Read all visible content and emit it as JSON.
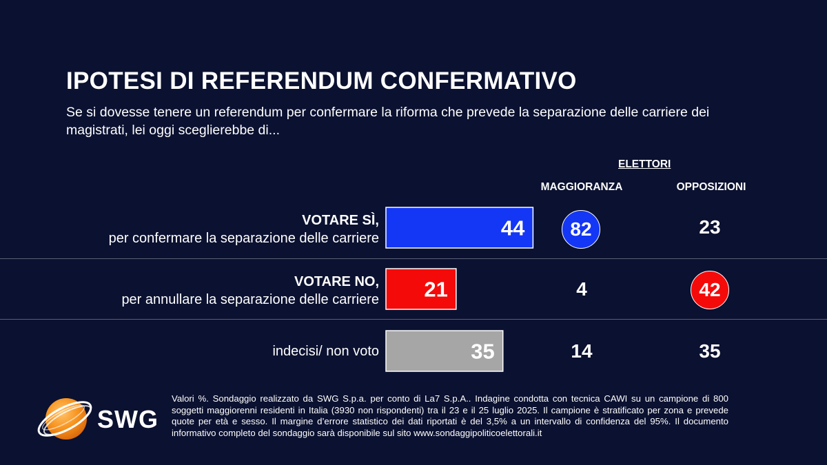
{
  "title": "IPOTESI DI REFERENDUM CONFERMATIVO",
  "subtitle": "Se si dovesse tenere un referendum per confermare la riforma che prevede la separazione delle carriere dei magistrati, lei oggi sceglierebbe di...",
  "group_label": "ELETTORI",
  "columns": {
    "maggioranza": "MAGGIORANZA",
    "opposizioni": "OPPOSIZIONI"
  },
  "rows": [
    {
      "label_strong": "VOTARE SÌ,",
      "label_rest": "per confermare la separazione delle carriere",
      "total": "44",
      "maggioranza": "82",
      "opposizioni": "23"
    },
    {
      "label_strong": "VOTARE NO,",
      "label_rest": "per annullare la separazione delle carriere",
      "total": "21",
      "maggioranza": "4",
      "opposizioni": "42"
    },
    {
      "label_strong": "",
      "label_rest": "indecisi/ non voto",
      "total": "35",
      "maggioranza": "14",
      "opposizioni": "35"
    }
  ],
  "chart_data": {
    "type": "bar",
    "categories": [
      "VOTARE SÌ, per confermare la separazione delle carriere",
      "VOTARE NO, per annullare la separazione delle carriere",
      "indecisi/ non voto"
    ],
    "values": [
      44,
      21,
      35
    ],
    "colors": [
      "#1436f5",
      "#f50a0a",
      "#a6a6a6"
    ],
    "series": [
      {
        "name": "MAGGIORANZA",
        "values": [
          82,
          4,
          14
        ]
      },
      {
        "name": "OPPOSIZIONI",
        "values": [
          23,
          42,
          35
        ]
      }
    ],
    "unit": "%",
    "xlim": [
      0,
      100
    ]
  },
  "highlight": {
    "maggioranza_color": "#1436f5",
    "opposizioni_color": "#f50a0a"
  },
  "logo": {
    "text": "SWG",
    "icon": "globe-swoosh-icon",
    "color": "#f7931e"
  },
  "footnote": "Valori %. Sondaggio realizzato da SWG S.p.a. per conto di La7 S.p.A.. Indagine condotta con tecnica CAWI su un campione di 800 soggetti maggiorenni residenti in Italia (3930 non rispondenti) tra il 23 e il 25 luglio 2025. Il campione è stratificato per zona e prevede quote per età e sesso. Il margine d’errore statistico dei dati riportati è del 3,5% a un intervallo di confidenza del 95%. Il documento informativo completo del sondaggio sarà disponibile sul sito www.sondaggipoliticoelettorali.it"
}
